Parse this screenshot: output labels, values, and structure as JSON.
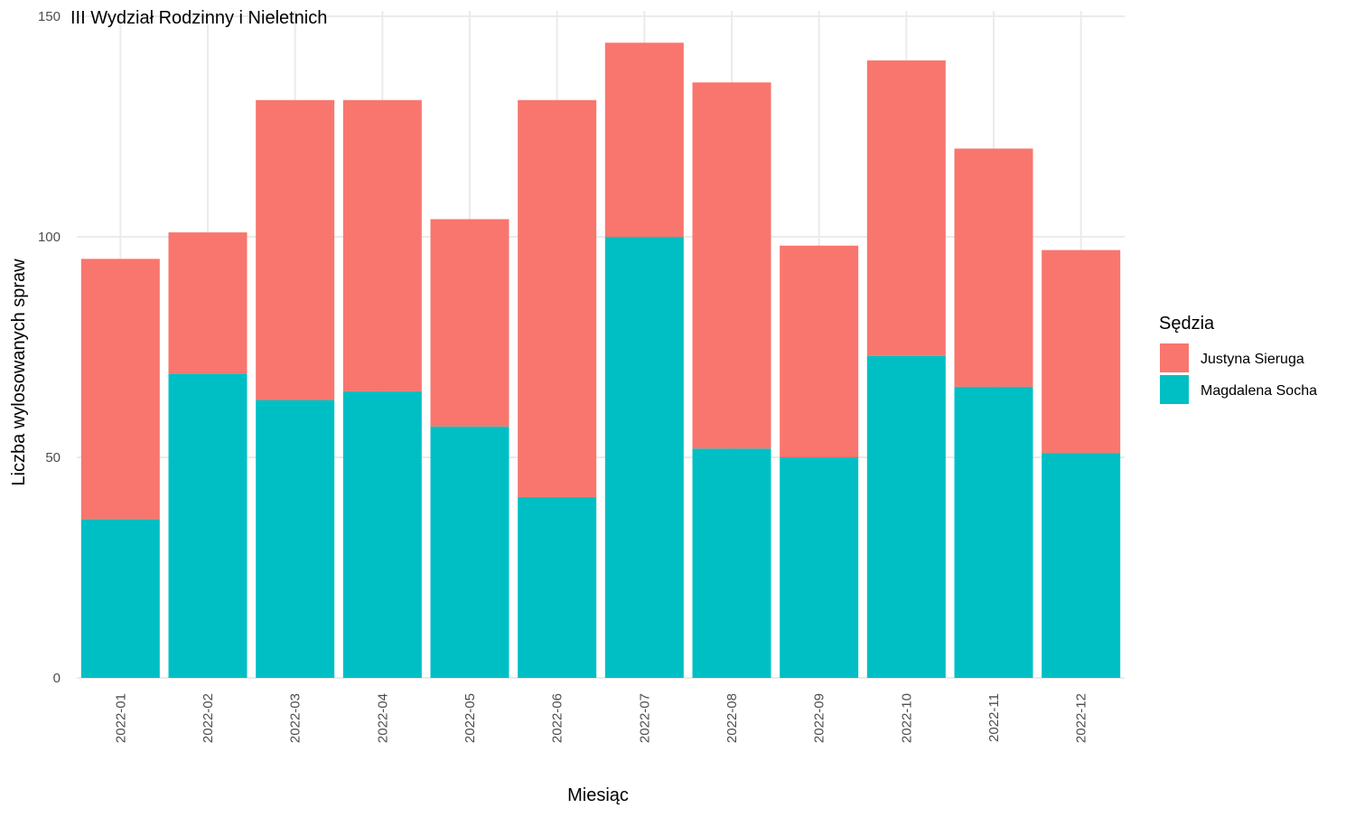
{
  "chart_data": {
    "type": "bar",
    "stacked": true,
    "title": "III Wydział Rodzinny i Nieletnich",
    "xlabel": "Miesiąc",
    "ylabel": "Liczba wylosowanych spraw",
    "ylim": [
      0,
      150
    ],
    "yticks": [
      0,
      50,
      100,
      150
    ],
    "grid": true,
    "legend": {
      "title": "Sędzia",
      "position": "right"
    },
    "categories": [
      "2022-01",
      "2022-02",
      "2022-03",
      "2022-04",
      "2022-05",
      "2022-06",
      "2022-07",
      "2022-08",
      "2022-09",
      "2022-10",
      "2022-11",
      "2022-12"
    ],
    "series": [
      {
        "name": "Magdalena Socha",
        "color": "#00BFC4",
        "values": [
          36,
          69,
          63,
          65,
          57,
          41,
          100,
          52,
          50,
          73,
          66,
          51
        ]
      },
      {
        "name": "Justyna Sieruga",
        "color": "#F8766D",
        "values": [
          59,
          32,
          68,
          66,
          47,
          90,
          44,
          83,
          48,
          67,
          54,
          46
        ]
      }
    ],
    "legend_order": [
      "Justyna Sieruga",
      "Magdalena Socha"
    ]
  }
}
